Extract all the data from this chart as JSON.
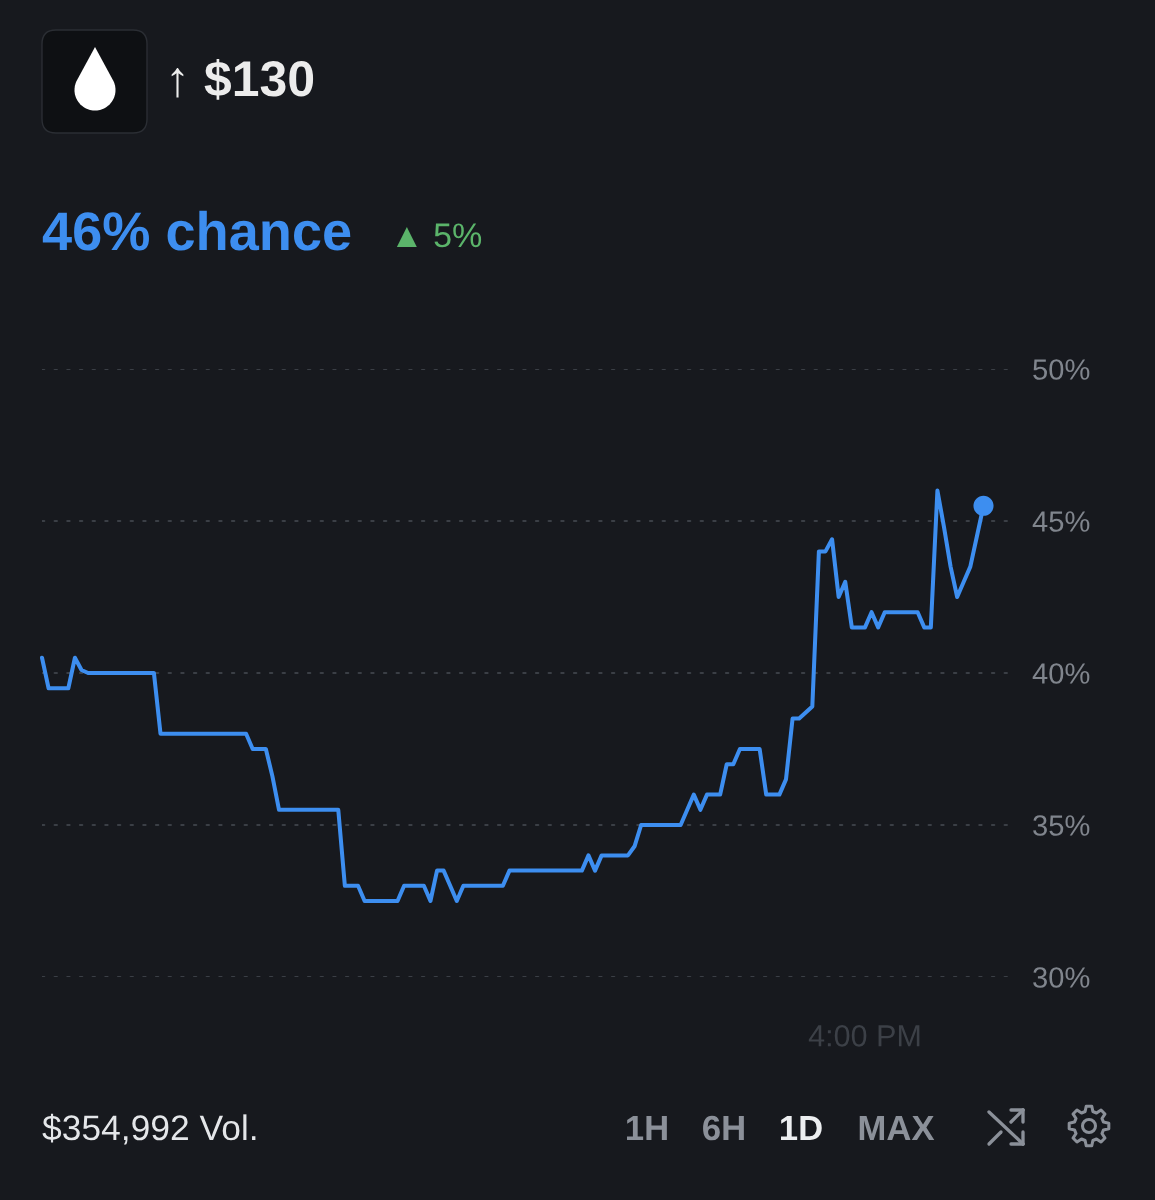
{
  "chart_data": {
    "type": "line",
    "title": "46% chance",
    "annotations": [
      "↑ $130",
      "▲ 5%",
      "$354,992 Vol.",
      "1H",
      "6H",
      "1D",
      "MAX"
    ],
    "categories": [
      null,
      null,
      null,
      null,
      null,
      null,
      null,
      null,
      null,
      null,
      null,
      null,
      null,
      null,
      null,
      null,
      null,
      null,
      null,
      null,
      null,
      null,
      null,
      null,
      null,
      null,
      null,
      null,
      null,
      null,
      null,
      null,
      null,
      null,
      null,
      null,
      null,
      null,
      null,
      null,
      null,
      null,
      null,
      null,
      null,
      null,
      null,
      null,
      null,
      null,
      null,
      null,
      null,
      null,
      null,
      null,
      null,
      null,
      null,
      null,
      null,
      null,
      null,
      null,
      null,
      null,
      null,
      null,
      null,
      null,
      null,
      null,
      null,
      null,
      null,
      null,
      null,
      null,
      null,
      null,
      null,
      null,
      null,
      null,
      null,
      null,
      null,
      null,
      null,
      null,
      null,
      null,
      null,
      null,
      null,
      null,
      null,
      null,
      null,
      null,
      null,
      null,
      null,
      null,
      null,
      null,
      null,
      null,
      null,
      null,
      null,
      null,
      null,
      null,
      null,
      null,
      null,
      null,
      null,
      null,
      null,
      null,
      null,
      null,
      null,
      "4:00 PM",
      null,
      null,
      null,
      null,
      null,
      null,
      null,
      null,
      null,
      null,
      null,
      null,
      null,
      null,
      null,
      null,
      null,
      null
    ],
    "series": [
      {
        "color": "#3d8ef0",
        "values": [
          40.5,
          39.5,
          39.5,
          39.5,
          39.5,
          40.5,
          40.1,
          40,
          40,
          40,
          40,
          40,
          40,
          40,
          40,
          40,
          40,
          40,
          38,
          38,
          38,
          38,
          38,
          38,
          38,
          38,
          38,
          38,
          38,
          38,
          38,
          38,
          37.5,
          37.5,
          37.5,
          36.6,
          35.5,
          35.5,
          35.5,
          35.5,
          35.5,
          35.5,
          35.5,
          35.5,
          35.5,
          35.5,
          33,
          33,
          33,
          32.5,
          32.5,
          32.5,
          32.5,
          32.5,
          32.5,
          33,
          33,
          33,
          33,
          32.5,
          33.5,
          33.5,
          33,
          32.5,
          33,
          33,
          33,
          33,
          33,
          33,
          33,
          33.5,
          33.5,
          33.5,
          33.5,
          33.5,
          33.5,
          33.5,
          33.5,
          33.5,
          33.5,
          33.5,
          33.5,
          34,
          33.5,
          34,
          34,
          34,
          34,
          34,
          34.3,
          35,
          35,
          35,
          35,
          35,
          35,
          35,
          35.5,
          36,
          35.5,
          36,
          36,
          36,
          37,
          37,
          37.5,
          37.5,
          37.5,
          37.5,
          36,
          36,
          36,
          36.5,
          38.5,
          38.5,
          38.7,
          38.9,
          44,
          44,
          44.4,
          42.5,
          43,
          41.5,
          41.5,
          41.5,
          42,
          41.5,
          42,
          42,
          42,
          42,
          42,
          42,
          41.5,
          41.5,
          46,
          44.8,
          43.5,
          42.5,
          43,
          43.5,
          44.5,
          45.5
        ]
      },
      {
        "type": "scatter",
        "color": "#3d8ef0",
        "marker": "circle",
        "values": [
          null,
          null,
          null,
          null,
          null,
          null,
          null,
          null,
          null,
          null,
          null,
          null,
          null,
          null,
          null,
          null,
          null,
          null,
          null,
          null,
          null,
          null,
          null,
          null,
          null,
          null,
          null,
          null,
          null,
          null,
          null,
          null,
          null,
          null,
          null,
          null,
          null,
          null,
          null,
          null,
          null,
          null,
          null,
          null,
          null,
          null,
          null,
          null,
          null,
          null,
          null,
          null,
          null,
          null,
          null,
          null,
          null,
          null,
          null,
          null,
          null,
          null,
          null,
          null,
          null,
          null,
          null,
          null,
          null,
          null,
          null,
          null,
          null,
          null,
          null,
          null,
          null,
          null,
          null,
          null,
          null,
          null,
          null,
          null,
          null,
          null,
          null,
          null,
          null,
          null,
          null,
          null,
          null,
          null,
          null,
          null,
          null,
          null,
          null,
          null,
          null,
          null,
          null,
          null,
          null,
          null,
          null,
          null,
          null,
          null,
          null,
          null,
          null,
          null,
          null,
          null,
          null,
          null,
          null,
          null,
          null,
          null,
          null,
          null,
          null,
          null,
          null,
          null,
          null,
          null,
          null,
          null,
          null,
          null,
          null,
          null,
          null,
          null,
          null,
          null,
          null,
          null,
          null,
          45.5
        ]
      }
    ],
    "ylim": [
      30,
      50
    ],
    "yticks": [
      {
        "value": 30,
        "label": "30%"
      },
      {
        "value": 35,
        "label": "35%"
      },
      {
        "value": 40,
        "label": "40%"
      },
      {
        "value": 45,
        "label": "45%"
      },
      {
        "value": 50,
        "label": "50%"
      }
    ],
    "grid": "y"
  }
}
